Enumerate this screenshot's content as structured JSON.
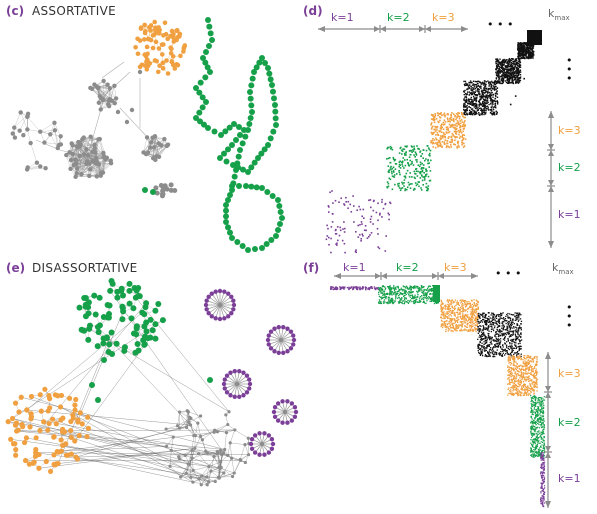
{
  "panels": [
    {
      "id": "c",
      "label": "(c)",
      "title": "ASSORTATIVE"
    },
    {
      "id": "d",
      "label": "(d)",
      "title": ""
    },
    {
      "id": "e",
      "label": "(e)",
      "title": "DISASSORTATIVE"
    },
    {
      "id": "f",
      "label": "(f)",
      "title": ""
    }
  ],
  "k_labels": {
    "k1": "k=1",
    "k2": "k=2",
    "k3": "k=3",
    "dots": "• • •",
    "kmax_base": "k",
    "kmax_sub": "max"
  },
  "colors": {
    "orange": "#f0a040",
    "green": "#16a04a",
    "purple": "#7b3f98",
    "gray": "#8c8c8c",
    "black": "#111111",
    "axis": "#8c8c8c"
  }
}
